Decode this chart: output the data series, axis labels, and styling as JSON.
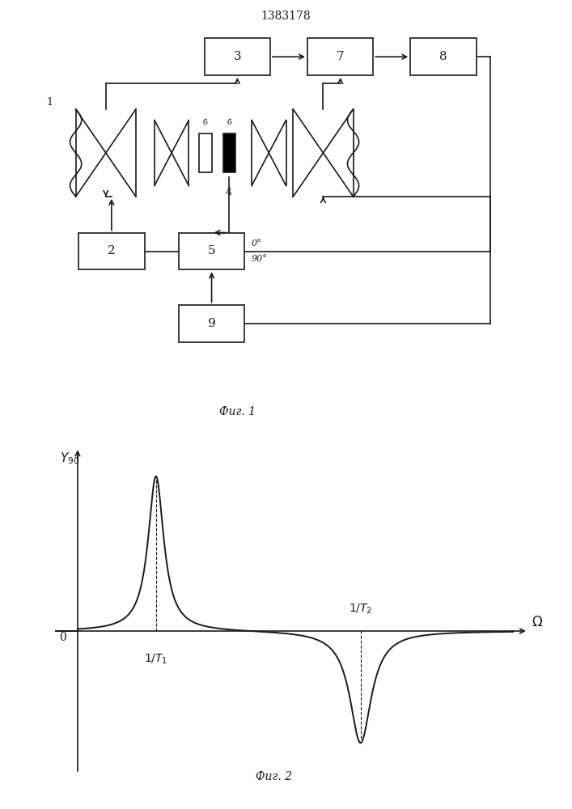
{
  "title": "1383178",
  "fig1_caption": "Фиг. 1",
  "fig2_caption": "Фиг. 2",
  "line_color": "#1a1a1a",
  "lw": 1.2
}
